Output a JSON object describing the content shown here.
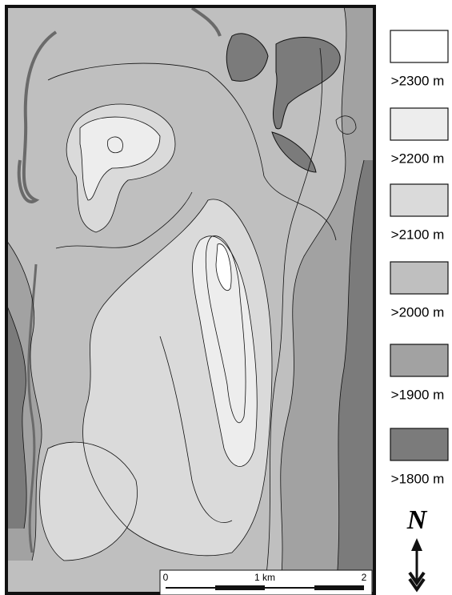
{
  "legend": [
    {
      "label": ">2300 m",
      "color": "#ffffff"
    },
    {
      "label": ">2200 m",
      "color": "#ededed"
    },
    {
      "label": ">2100 m",
      "color": "#dadada"
    },
    {
      "label": ">2000 m",
      "color": "#bfbfbf"
    },
    {
      "label": ">1900 m",
      "color": "#a2a2a2"
    },
    {
      "label": ">1800 m",
      "color": "#7b7b7b"
    }
  ],
  "scale_bar": {
    "labels": [
      "0",
      "1 km",
      "2"
    ]
  },
  "north_label": "N"
}
